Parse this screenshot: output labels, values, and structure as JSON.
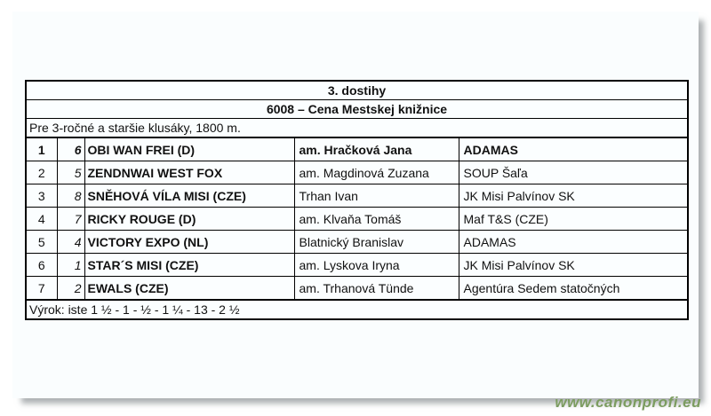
{
  "document": {
    "header": {
      "race_number_title": "3. dostihy",
      "race_name": "6008 – Cena Mestskej knižnice",
      "race_conditions": "Pre 3-ročné a staršie klusáky, 1800 m."
    },
    "results": {
      "rows": [
        {
          "place": "1",
          "start_number": "6",
          "horse": "OBI WAN FREI (D)",
          "driver": "am. Hračková Jana",
          "stable": "ADAMAS"
        },
        {
          "place": "2",
          "start_number": "5",
          "horse": "ZENDNWAI WEST FOX",
          "driver": "am. Magdinová Zuzana",
          "stable": "SOUP Šaľa"
        },
        {
          "place": "3",
          "start_number": "8",
          "horse": "SNĚHOVÁ VÍLA MISI (CZE)",
          "driver": "Trhan Ivan",
          "stable": "JK Misi Palvínov SK"
        },
        {
          "place": "4",
          "start_number": "7",
          "horse": "RICKY ROUGE (D)",
          "driver": "am. Klvaňa Tomáš",
          "stable": "Maf T&S (CZE)"
        },
        {
          "place": "5",
          "start_number": "4",
          "horse": "VICTORY EXPO (NL)",
          "driver": "Blatnický Branislav",
          "stable": "ADAMAS"
        },
        {
          "place": "6",
          "start_number": "1",
          "horse": "STAR´S MISI (CZE)",
          "driver": "am. Lyskova Iryna",
          "stable": "JK Misi Palvínov SK"
        },
        {
          "place": "7",
          "start_number": "2",
          "horse": "EWALS (CZE)",
          "driver": "am. Trhanová Tünde",
          "stable": "Agentúra Sedem statočných"
        }
      ]
    },
    "footer": {
      "verdict": "Výrok: iste 1 ½ - 1 - ½ - 1 ¼ - 13 - 2 ½"
    },
    "watermark": {
      "text": "www.canonprofi.eu",
      "color": "#7c9c60"
    }
  }
}
